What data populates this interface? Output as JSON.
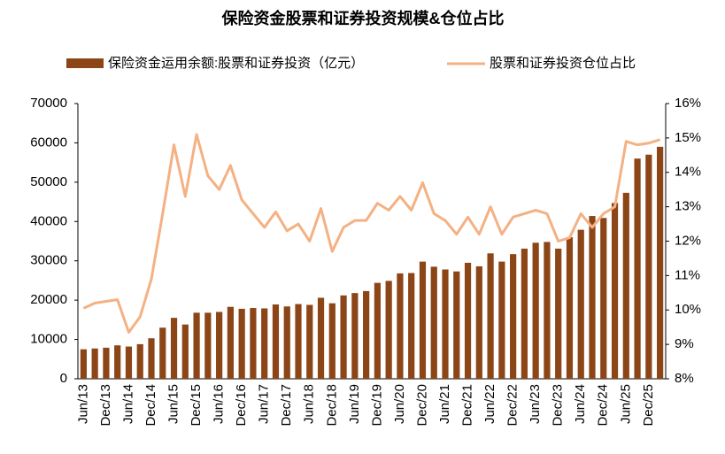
{
  "chart_data": {
    "type": "bar-line",
    "title": "保险资金股票和证券投资规模&仓位占比",
    "categories": [
      "Jun/13",
      null,
      "Dec/13",
      null,
      "Jun/14",
      null,
      "Dec/14",
      null,
      "Jun/15",
      null,
      "Dec/15",
      null,
      "Jun/16",
      null,
      "Dec/16",
      null,
      "Jun/17",
      null,
      "Dec/17",
      null,
      "Jun/18",
      null,
      "Dec/18",
      null,
      "Jun/19",
      null,
      "Dec/19",
      null,
      "Jun/20",
      null,
      "Dec/20",
      null,
      "Jun/21",
      null,
      "Dec/21",
      null,
      "Jun/22",
      null,
      "Dec/22",
      null,
      "Jun/23",
      null,
      "Dec/23",
      null,
      "Jun/24",
      null,
      "Dec/24",
      null,
      "Jun/25",
      null,
      "Dec/25",
      null
    ],
    "series": [
      {
        "name": "保险资金运用余额:股票和证券投资（亿元）",
        "type": "bar",
        "color": "#8c4517",
        "values": [
          7500,
          7700,
          7900,
          8500,
          8200,
          8800,
          10300,
          13000,
          15500,
          13800,
          16800,
          16800,
          17000,
          18300,
          17800,
          18000,
          17900,
          18900,
          18400,
          19000,
          18800,
          20600,
          19200,
          21200,
          21800,
          22300,
          24400,
          24900,
          26800,
          26900,
          29800,
          28500,
          27800,
          27300,
          29500,
          28600,
          31900,
          29800,
          31700,
          33100,
          34600,
          34800,
          33100,
          36000,
          37900,
          41400,
          40900,
          44700,
          47300,
          56000,
          57000,
          59000
        ]
      },
      {
        "name": "股票和证券投资仓位占比",
        "type": "line",
        "axis": "y2",
        "color": "#f4b183",
        "values": [
          10.05,
          10.2,
          10.25,
          10.3,
          9.35,
          9.8,
          10.9,
          12.8,
          14.8,
          13.3,
          15.1,
          13.9,
          13.5,
          14.2,
          13.2,
          12.8,
          12.4,
          12.85,
          12.3,
          12.5,
          12.0,
          12.95,
          11.7,
          12.4,
          12.6,
          12.6,
          13.1,
          12.9,
          13.3,
          12.9,
          13.7,
          12.8,
          12.6,
          12.2,
          12.7,
          12.2,
          13.0,
          12.2,
          12.7,
          12.8,
          12.9,
          12.8,
          12.0,
          12.1,
          12.8,
          12.4,
          12.8,
          13.0,
          14.9,
          14.8,
          14.85,
          14.95
        ]
      }
    ],
    "ylim": [
      0,
      70000
    ],
    "yticks": [
      0,
      10000,
      20000,
      30000,
      40000,
      50000,
      60000,
      70000
    ],
    "y2lim": [
      8,
      16
    ],
    "y2ticks": [
      {
        "value": 8,
        "label": "8%"
      },
      {
        "value": 9,
        "label": "9%"
      },
      {
        "value": 10,
        "label": "10%"
      },
      {
        "value": 11,
        "label": "11%"
      },
      {
        "value": 12,
        "label": "12%"
      },
      {
        "value": 13,
        "label": "13%"
      },
      {
        "value": 14,
        "label": "14%"
      },
      {
        "value": 15,
        "label": "15%"
      },
      {
        "value": 16,
        "label": "16%"
      }
    ]
  }
}
